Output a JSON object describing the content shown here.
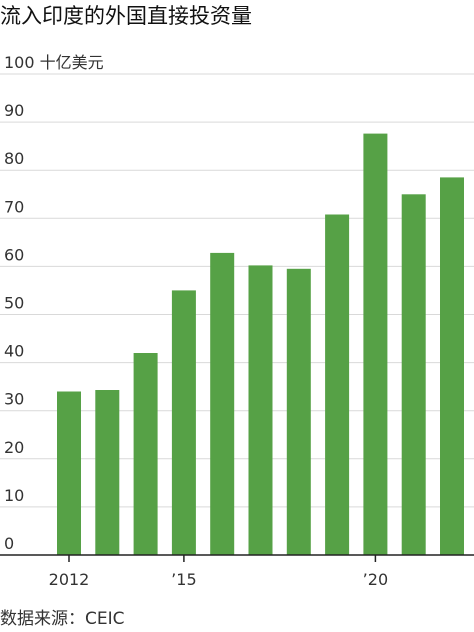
{
  "title": "流入印度的外国直接投资量",
  "source": "数据来源：CEIC",
  "colors": {
    "bar": "#56A146",
    "grid": "#d9d9d9",
    "axis": "#222222"
  },
  "chart_data": {
    "type": "bar",
    "title": "流入印度的外国直接投资量",
    "ylabel": "",
    "unit_label": "十亿美元",
    "ylim": [
      0,
      100
    ],
    "yticks": [
      0,
      10,
      20,
      30,
      40,
      50,
      60,
      70,
      80,
      90,
      100
    ],
    "ytick_labels": [
      "0",
      "10",
      "20",
      "30",
      "40",
      "50",
      "60",
      "70",
      "80",
      "90",
      "100 十亿美元"
    ],
    "categories": [
      "2012",
      "2013",
      "2014",
      "2015",
      "2016",
      "2017",
      "2018",
      "2019",
      "2020",
      "2021",
      "2022"
    ],
    "values": [
      34.0,
      34.3,
      42.0,
      55.0,
      62.8,
      60.2,
      59.5,
      70.8,
      87.6,
      75.0,
      78.5
    ],
    "xtick_labels": [
      {
        "category": "2012",
        "label": "2012"
      },
      {
        "category": "2015",
        "label": "’15"
      },
      {
        "category": "2020",
        "label": "’20"
      }
    ],
    "grid": true
  }
}
